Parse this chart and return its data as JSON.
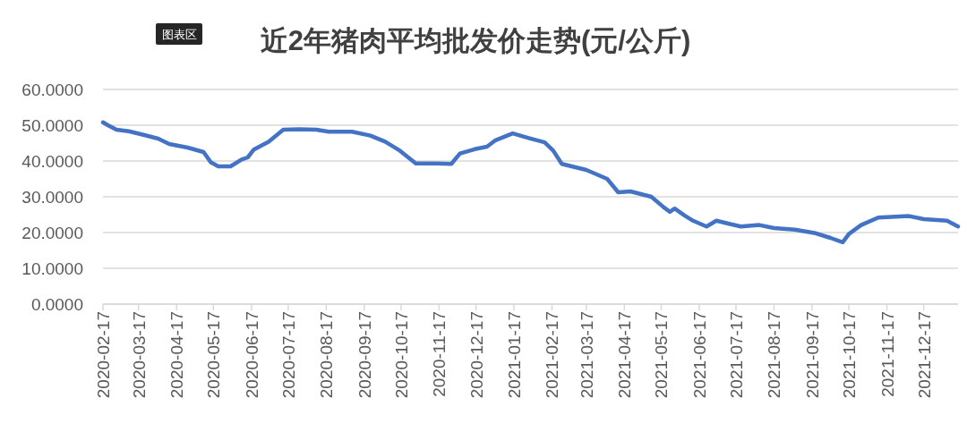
{
  "chart_data": {
    "type": "line",
    "title": "近2年猪肉平均批发价走势(元/公斤)",
    "annotations": [
      "图表区"
    ],
    "x": [
      "2020-02-17",
      "2020-02-21",
      "2020-02-28",
      "2020-03-09",
      "2020-03-21",
      "2020-04-02",
      "2020-04-11",
      "2020-04-26",
      "2020-05-09",
      "2020-05-15",
      "2020-05-21",
      "2020-05-31",
      "2020-06-09",
      "2020-06-14",
      "2020-06-19",
      "2020-07-01",
      "2020-07-13",
      "2020-07-26",
      "2020-08-09",
      "2020-08-19",
      "2020-09-07",
      "2020-09-22",
      "2020-10-04",
      "2020-10-16",
      "2020-10-29",
      "2020-11-15",
      "2020-11-27",
      "2020-12-04",
      "2020-12-16",
      "2020-12-26",
      "2021-01-02",
      "2021-01-16",
      "2021-01-29",
      "2021-02-11",
      "2021-02-18",
      "2021-02-25",
      "2021-03-17",
      "2021-04-03",
      "2021-04-12",
      "2021-04-22",
      "2021-05-09",
      "2021-05-19",
      "2021-05-24",
      "2021-05-28",
      "2021-06-05",
      "2021-06-12",
      "2021-06-23",
      "2021-07-01",
      "2021-07-13",
      "2021-07-21",
      "2021-08-05",
      "2021-08-17",
      "2021-09-03",
      "2021-09-20",
      "2021-10-02",
      "2021-10-12",
      "2021-10-17",
      "2021-10-27",
      "2021-11-10",
      "2021-12-05",
      "2021-12-17",
      "2022-01-05",
      "2022-01-14"
    ],
    "series": [
      {
        "color": "#4472c4",
        "values": [
          50.8,
          50.0,
          48.75,
          48.3,
          47.3,
          46.25,
          44.75,
          43.75,
          42.5,
          39.6,
          38.5,
          38.5,
          40.4,
          41,
          43.2,
          45.4,
          48.75,
          48.9,
          48.75,
          48.2,
          48.2,
          47.1,
          45.4,
          42.9,
          39.3,
          39.3,
          39.2,
          42.1,
          43.3,
          44,
          45.8,
          47.7,
          46.4,
          45.2,
          42.9,
          39.2,
          37.5,
          35,
          31.25,
          31.5,
          30,
          27.1,
          25.8,
          26.7,
          24.8,
          23.3,
          21.7,
          23.3,
          22.3,
          21.7,
          22.1,
          21.25,
          20.8,
          19.8,
          18.5,
          17.3,
          19.6,
          22.1,
          24.2,
          24.6,
          23.75,
          23.3,
          21.7
        ]
      }
    ],
    "xlim": [
      "2020-02-17",
      "2022-01-14"
    ],
    "xticks": [
      "2020-02-17",
      "2020-03-17",
      "2020-04-17",
      "2020-05-17",
      "2020-06-17",
      "2020-07-17",
      "2020-08-17",
      "2020-09-17",
      "2020-10-17",
      "2020-11-17",
      "2020-12-17",
      "2021-01-17",
      "2021-02-17",
      "2021-03-17",
      "2021-04-17",
      "2021-05-17",
      "2021-06-17",
      "2021-07-17",
      "2021-08-17",
      "2021-09-17",
      "2021-10-17",
      "2021-11-17",
      "2021-12-17"
    ],
    "ylim": [
      0,
      60
    ],
    "yticks": [
      {
        "value": 0,
        "label": "0.0000"
      },
      {
        "value": 10,
        "label": "10.0000"
      },
      {
        "value": 20,
        "label": "20.0000"
      },
      {
        "value": 30,
        "label": "30.0000"
      },
      {
        "value": 40,
        "label": "40.0000"
      },
      {
        "value": 50,
        "label": "50.0000"
      },
      {
        "value": 60,
        "label": "60.0000"
      }
    ],
    "grid": "y",
    "line_style": "solid"
  }
}
